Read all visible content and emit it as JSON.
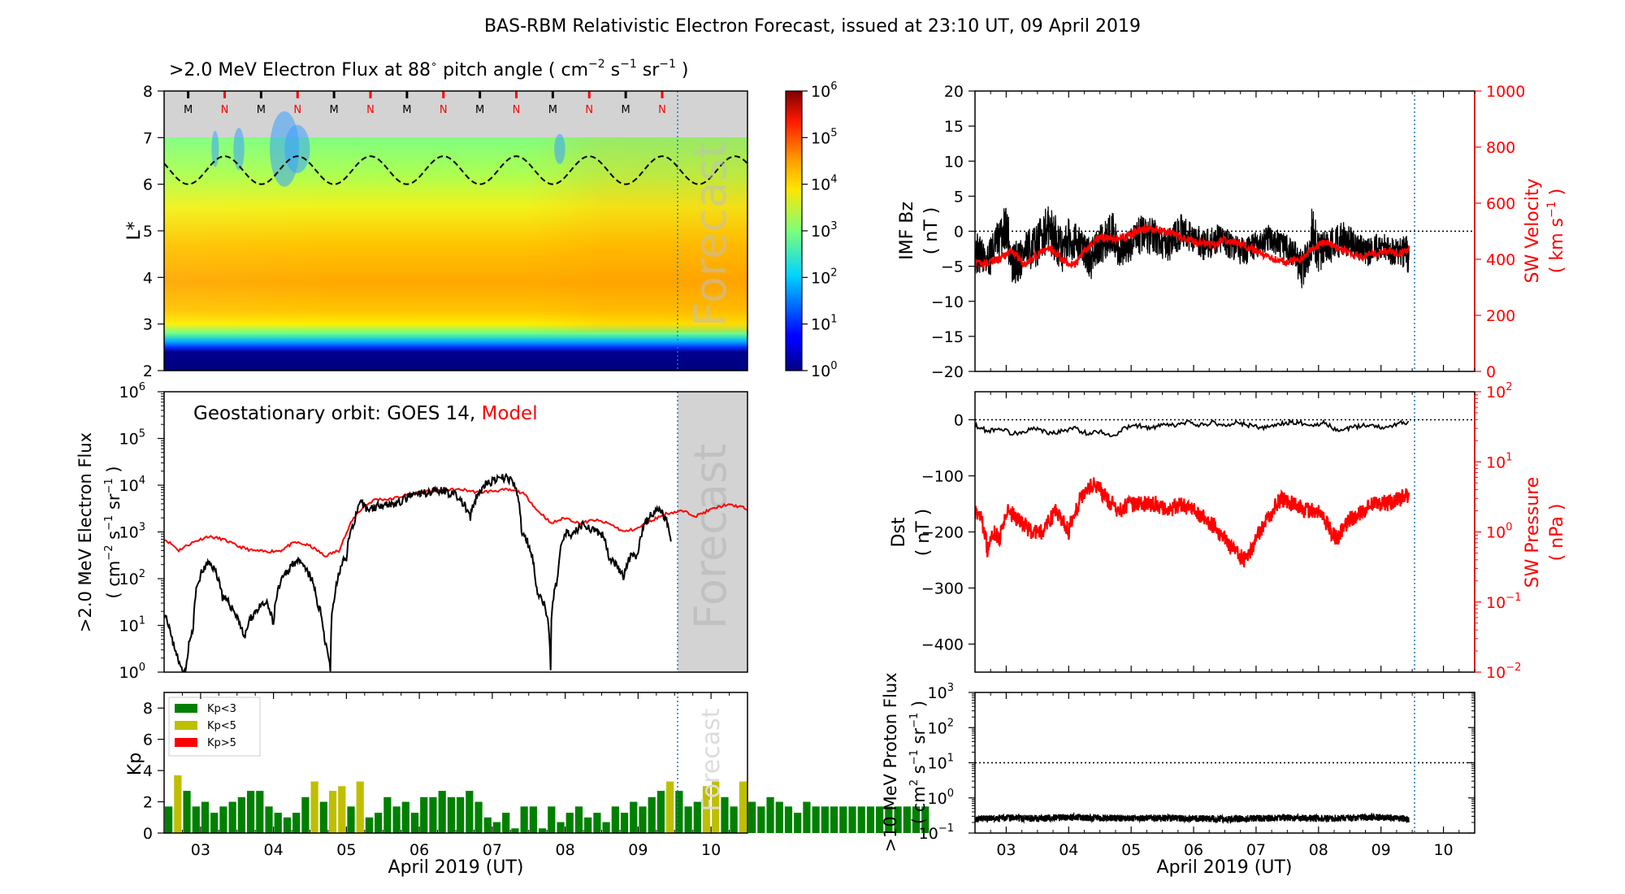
{
  "figure": {
    "title": "BAS-RBM Relativistic Electron Forecast, issued at 23:10 UT, 09 April 2019",
    "forecast_label": "Forecast"
  },
  "x_axis": {
    "label": "April 2019 (UT)",
    "range_days": [
      2.5,
      10.5
    ],
    "issue_day": 9.465,
    "tick_days": [
      3,
      4,
      5,
      6,
      7,
      8,
      9,
      10
    ],
    "tick_labels": [
      "03",
      "04",
      "05",
      "06",
      "07",
      "08",
      "09",
      "10"
    ]
  },
  "chart_data": [
    {
      "id": "flux_map",
      "type": "heatmap",
      "title_parts": [
        ">2.0 MeV Electron Flux at 88",
        "∘",
        " pitch angle ( cm",
        "−2",
        " s",
        "−1",
        " sr",
        "−1",
        " )"
      ],
      "ylabel": "L*",
      "ylim": [
        2,
        8
      ],
      "yticks": [
        2,
        3,
        4,
        5,
        6,
        7,
        8
      ],
      "colorbar": {
        "scale": "log",
        "range": [
          1,
          1000000
        ],
        "exponents": [
          "0",
          "1",
          "2",
          "3",
          "4",
          "5",
          "6"
        ]
      },
      "data_region_lmax": 7,
      "m_n_markers": [
        {
          "label": "M",
          "day": 2.83,
          "color": "#000000"
        },
        {
          "label": "N",
          "day": 3.33,
          "color": "#ff0000"
        },
        {
          "label": "M",
          "day": 3.83,
          "color": "#000000"
        },
        {
          "label": "N",
          "day": 4.33,
          "color": "#ff0000"
        },
        {
          "label": "M",
          "day": 4.83,
          "color": "#000000"
        },
        {
          "label": "N",
          "day": 5.33,
          "color": "#ff0000"
        },
        {
          "label": "M",
          "day": 5.83,
          "color": "#000000"
        },
        {
          "label": "N",
          "day": 6.33,
          "color": "#ff0000"
        },
        {
          "label": "M",
          "day": 6.83,
          "color": "#000000"
        },
        {
          "label": "N",
          "day": 7.33,
          "color": "#ff0000"
        },
        {
          "label": "M",
          "day": 7.83,
          "color": "#000000"
        },
        {
          "label": "N",
          "day": 8.33,
          "color": "#ff0000"
        },
        {
          "label": "M",
          "day": 8.83,
          "color": "#000000"
        },
        {
          "label": "N",
          "day": 9.33,
          "color": "#ff0000"
        }
      ],
      "geo_line": {
        "style": "dashed",
        "L_min": 6.0,
        "L_max": 6.6,
        "period_days": 1.0
      }
    },
    {
      "id": "geo_flux",
      "type": "line",
      "annotation": "Geostationary orbit:   GOES 14,",
      "annotation_model": "Model",
      "ylabel_line1": ">2.0 MeV Electron Flux",
      "ylabel_line2_parts": [
        "( cm",
        "−2",
        " s",
        "−1",
        " sr",
        "−1",
        " )"
      ],
      "yscale": "log",
      "ylim": [
        1,
        1000000
      ],
      "ytick_exponents": [
        "0",
        "1",
        "2",
        "3",
        "4",
        "5",
        "6"
      ],
      "series": [
        {
          "name": "GOES 14",
          "color": "#000000",
          "x": [
            2.5,
            2.6,
            2.7,
            2.8,
            2.9,
            3.0,
            3.1,
            3.15,
            3.3,
            3.5,
            3.6,
            3.75,
            3.9,
            4.0,
            4.1,
            4.2,
            4.3,
            4.45,
            4.6,
            4.7,
            4.78,
            4.85,
            5.0,
            5.1,
            5.2,
            5.3,
            5.5,
            5.7,
            5.9,
            6.1,
            6.3,
            6.5,
            6.7,
            6.8,
            6.9,
            7.0,
            7.2,
            7.3,
            7.4,
            7.6,
            7.8,
            7.9,
            8.0,
            8.1,
            8.25,
            8.4,
            8.5,
            8.6,
            8.8,
            8.9,
            9.0,
            9.1,
            9.2,
            9.3,
            9.45
          ],
          "values": [
            20,
            5,
            1.5,
            1,
            8,
            120,
            210,
            200,
            40,
            15,
            5,
            20,
            30,
            10,
            80,
            150,
            250,
            150,
            30,
            5,
            1,
            50,
            300,
            1500,
            4000,
            3000,
            4000,
            4000,
            6000,
            7000,
            8000,
            6000,
            2000,
            6000,
            10000,
            12000,
            15000,
            10000,
            1000,
            60,
            1,
            100,
            1000,
            800,
            1500,
            1000,
            900,
            300,
            100,
            300,
            300,
            1500,
            2500,
            3000,
            700
          ]
        },
        {
          "name": "Model",
          "color": "#ff0000",
          "x": [
            2.5,
            2.7,
            2.9,
            3.1,
            3.3,
            3.5,
            3.7,
            3.9,
            4.1,
            4.3,
            4.5,
            4.7,
            4.9,
            5.0,
            5.2,
            5.4,
            5.6,
            5.8,
            6.0,
            6.2,
            6.4,
            6.6,
            6.8,
            7.0,
            7.2,
            7.4,
            7.6,
            7.8,
            8.0,
            8.2,
            8.4,
            8.6,
            8.8,
            9.0,
            9.2,
            9.4,
            9.6,
            9.8,
            10.0,
            10.2,
            10.4,
            10.5
          ],
          "values": [
            700,
            400,
            600,
            800,
            700,
            500,
            400,
            380,
            400,
            600,
            500,
            300,
            400,
            900,
            3000,
            5000,
            5000,
            6000,
            7000,
            7500,
            8000,
            8000,
            7000,
            7500,
            8000,
            7000,
            3000,
            1500,
            2000,
            1500,
            1800,
            1500,
            1000,
            1200,
            1800,
            2500,
            2800,
            2200,
            3000,
            3800,
            3500,
            3000
          ]
        }
      ]
    },
    {
      "id": "kp",
      "type": "bar",
      "ylabel": "Kp",
      "ylim": [
        0,
        9
      ],
      "yticks": [
        0,
        2,
        4,
        6,
        8
      ],
      "bin_days": 0.125,
      "start_day": 2.5,
      "legend": [
        {
          "label": "Kp<3",
          "color": "#008000"
        },
        {
          "label": "Kp<5",
          "color": "#bfbf00"
        },
        {
          "label": "Kp>5",
          "color": "#ff0000"
        }
      ],
      "legend_position": "upper-left",
      "values": [
        1.7,
        3.7,
        2.7,
        1.7,
        2.0,
        1.3,
        1.7,
        2.0,
        2.3,
        2.7,
        2.7,
        1.7,
        1.3,
        1.0,
        1.3,
        2.3,
        3.3,
        2.0,
        2.7,
        3.0,
        1.7,
        3.3,
        1.0,
        1.3,
        2.3,
        1.7,
        2.0,
        1.3,
        2.3,
        2.3,
        2.7,
        2.3,
        2.3,
        2.7,
        2.0,
        1.0,
        0.7,
        1.3,
        0.3,
        1.7,
        1.7,
        0.3,
        1.7,
        0.7,
        1.3,
        1.7,
        1.0,
        1.3,
        0.7,
        1.7,
        1.3,
        2.0,
        1.7,
        2.3,
        2.7,
        3.3,
        2.7,
        1.7,
        2.0,
        3.0,
        3.3,
        2.3,
        1.7,
        3.3,
        2.0,
        1.7,
        2.3,
        2.0,
        1.7,
        1.3,
        2.0,
        1.7,
        1.7,
        1.7,
        1.7,
        1.7,
        1.7,
        1.7,
        1.7,
        1.7,
        1.7,
        1.7,
        1.7,
        1.7
      ],
      "colors": [
        "#008000",
        "#bfbf00",
        "#008000",
        "#008000",
        "#008000",
        "#008000",
        "#008000",
        "#008000",
        "#008000",
        "#008000",
        "#008000",
        "#008000",
        "#008000",
        "#008000",
        "#008000",
        "#008000",
        "#bfbf00",
        "#008000",
        "#bfbf00",
        "#bfbf00",
        "#008000",
        "#bfbf00",
        "#008000",
        "#008000",
        "#008000",
        "#008000",
        "#008000",
        "#008000",
        "#008000",
        "#008000",
        "#008000",
        "#008000",
        "#008000",
        "#008000",
        "#008000",
        "#008000",
        "#008000",
        "#008000",
        "#008000",
        "#008000",
        "#008000",
        "#008000",
        "#008000",
        "#008000",
        "#008000",
        "#008000",
        "#008000",
        "#008000",
        "#008000",
        "#008000",
        "#008000",
        "#008000",
        "#008000",
        "#008000",
        "#008000",
        "#bfbf00",
        "#008000",
        "#008000",
        "#008000",
        "#bfbf00",
        "#bfbf00",
        "#008000",
        "#008000",
        "#bfbf00",
        "#008000",
        "#008000",
        "#008000",
        "#008000",
        "#008000",
        "#008000",
        "#008000",
        "#008000",
        "#008000",
        "#008000",
        "#008000",
        "#008000",
        "#008000",
        "#008000",
        "#008000",
        "#008000",
        "#008000",
        "#008000",
        "#008000",
        "#008000"
      ]
    },
    {
      "id": "imf_sw",
      "type": "line",
      "ylabel_left": [
        "IMF Bz",
        "( nT )"
      ],
      "ylim_left": [
        -20,
        20
      ],
      "yticks_left": [
        -20,
        -15,
        -10,
        -5,
        0,
        5,
        10,
        15,
        20
      ],
      "ytick_labels_left": [
        "−20",
        "−15",
        "−10",
        "−5",
        "0",
        "5",
        "10",
        "15",
        "20"
      ],
      "ylabel_right": "SW Velocity",
      "ylabel_right_parts": [
        "( km s",
        "−1",
        " )"
      ],
      "ylim_right": [
        0,
        1000
      ],
      "yticks_right": [
        0,
        200,
        400,
        600,
        800,
        1000
      ],
      "series": [
        {
          "name": "IMF Bz",
          "color": "#000000",
          "x": [
            2.5,
            2.7,
            2.9,
            3.0,
            3.1,
            3.3,
            3.5,
            3.6,
            3.75,
            3.9,
            4.0,
            4.2,
            4.35,
            4.5,
            4.7,
            4.8,
            5.0,
            5.2,
            5.4,
            5.6,
            5.8,
            6.0,
            6.2,
            6.4,
            6.6,
            6.8,
            7.0,
            7.2,
            7.4,
            7.6,
            7.75,
            7.9,
            8.0,
            8.2,
            8.4,
            8.6,
            8.8,
            9.0,
            9.2,
            9.4,
            9.45
          ],
          "values": [
            -3,
            -4,
            -1,
            1,
            -5,
            -3,
            -2,
            0,
            0,
            -3,
            -1,
            -2,
            -4,
            -2,
            0,
            -3,
            -2,
            0,
            -1,
            -2,
            0,
            -1,
            -2,
            -1,
            -2,
            -3,
            -2,
            -1,
            -2,
            -3,
            -6,
            0,
            -3,
            -2,
            -1,
            -2,
            -3,
            -2,
            -3,
            -3,
            -4
          ],
          "envelope": [
            6,
            6,
            6,
            7,
            7,
            6,
            6,
            7,
            8,
            6,
            6,
            5,
            6,
            6,
            6,
            5,
            5,
            6,
            5,
            5,
            5,
            4,
            5,
            4,
            4,
            4,
            4,
            4,
            4,
            4,
            6,
            8,
            6,
            5,
            5,
            4,
            4,
            4,
            4,
            5,
            5
          ]
        },
        {
          "name": "SW Velocity",
          "color": "#ff0000",
          "x": [
            2.5,
            2.7,
            2.9,
            3.1,
            3.3,
            3.5,
            3.7,
            3.9,
            4.1,
            4.3,
            4.5,
            4.7,
            4.9,
            5.1,
            5.3,
            5.5,
            5.7,
            5.9,
            6.1,
            6.3,
            6.5,
            6.7,
            6.9,
            7.1,
            7.3,
            7.5,
            7.7,
            7.9,
            8.1,
            8.3,
            8.5,
            8.7,
            8.9,
            9.1,
            9.3,
            9.45
          ],
          "values": [
            380,
            390,
            400,
            430,
            380,
            420,
            440,
            400,
            380,
            440,
            480,
            470,
            480,
            500,
            510,
            500,
            490,
            470,
            460,
            450,
            470,
            460,
            440,
            420,
            400,
            390,
            400,
            440,
            460,
            440,
            420,
            410,
            420,
            430,
            420,
            440
          ]
        }
      ]
    },
    {
      "id": "dst_pressure",
      "type": "line",
      "ylabel_left": [
        "Dst",
        "( nT )"
      ],
      "ylim_left": [
        -450,
        50
      ],
      "yticks_left": [
        0,
        -100,
        -200,
        -300,
        -400
      ],
      "ytick_labels_left": [
        "0",
        "−100",
        "−200",
        "−300",
        "−400"
      ],
      "ylabel_right": "SW Pressure",
      "ylabel_right_units": "( nPa )",
      "yscale_right": "log",
      "ylim_right": [
        0.01,
        100
      ],
      "ytick_exponents_right": [
        "−2",
        "−1",
        "0",
        "1",
        "2"
      ],
      "series": [
        {
          "name": "Dst",
          "color": "#000000",
          "x": [
            2.5,
            2.7,
            2.9,
            3.1,
            3.3,
            3.5,
            3.7,
            3.9,
            4.1,
            4.3,
            4.5,
            4.7,
            4.9,
            5.1,
            5.3,
            5.5,
            5.7,
            5.9,
            6.1,
            6.3,
            6.5,
            6.7,
            6.9,
            7.1,
            7.3,
            7.5,
            7.7,
            7.9,
            8.1,
            8.3,
            8.5,
            8.7,
            8.9,
            9.1,
            9.3,
            9.45
          ],
          "values": [
            -10,
            -20,
            -15,
            -25,
            -20,
            -15,
            -25,
            -20,
            -15,
            -25,
            -20,
            -30,
            -15,
            -10,
            -15,
            -10,
            -10,
            -5,
            -10,
            -5,
            -10,
            -5,
            -10,
            -15,
            -10,
            -5,
            -5,
            -10,
            -5,
            -20,
            -15,
            -10,
            -10,
            -15,
            -5,
            -5
          ]
        },
        {
          "name": "SW Pressure",
          "color": "#ff0000",
          "x": [
            2.5,
            2.6,
            2.7,
            2.8,
            2.9,
            3.0,
            3.2,
            3.4,
            3.6,
            3.8,
            4.0,
            4.2,
            4.4,
            4.6,
            4.8,
            5.0,
            5.2,
            5.4,
            5.6,
            5.8,
            6.0,
            6.2,
            6.4,
            6.6,
            6.8,
            6.9,
            7.0,
            7.2,
            7.4,
            7.6,
            7.8,
            8.0,
            8.2,
            8.3,
            8.5,
            8.7,
            8.9,
            9.1,
            9.3,
            9.45
          ],
          "values": [
            2.0,
            1.5,
            0.5,
            1.0,
            0.8,
            2.0,
            1.5,
            1.0,
            1.0,
            2.0,
            1.0,
            3.0,
            5.0,
            3.0,
            2.0,
            2.5,
            2.5,
            2.5,
            2.0,
            2.5,
            2.0,
            1.5,
            1.0,
            0.6,
            0.4,
            0.5,
            0.8,
            1.5,
            3.0,
            2.5,
            2.0,
            2.0,
            1.0,
            0.8,
            1.5,
            2.0,
            2.5,
            2.5,
            3.0,
            3.5
          ]
        }
      ]
    },
    {
      "id": "proton_flux",
      "type": "line",
      "ylabel_line1": ">10 MeV Proton Flux",
      "ylabel_line2_parts": [
        "( cm",
        "2",
        " s",
        "−1",
        " sr",
        "−1",
        " )"
      ],
      "yscale": "log",
      "ylim": [
        0.1,
        1000
      ],
      "ytick_exponents": [
        "−1",
        "0",
        "1",
        "2",
        "3"
      ],
      "threshold": 10,
      "series": [
        {
          "name": ">10 MeV Proton Flux",
          "color": "#000000",
          "x": [
            2.5,
            3.0,
            3.5,
            4.0,
            4.5,
            5.0,
            5.5,
            6.0,
            6.5,
            7.0,
            7.5,
            8.0,
            8.5,
            9.0,
            9.45
          ],
          "values": [
            0.25,
            0.27,
            0.26,
            0.28,
            0.27,
            0.26,
            0.27,
            0.26,
            0.25,
            0.26,
            0.27,
            0.26,
            0.27,
            0.28,
            0.25
          ]
        }
      ]
    }
  ]
}
